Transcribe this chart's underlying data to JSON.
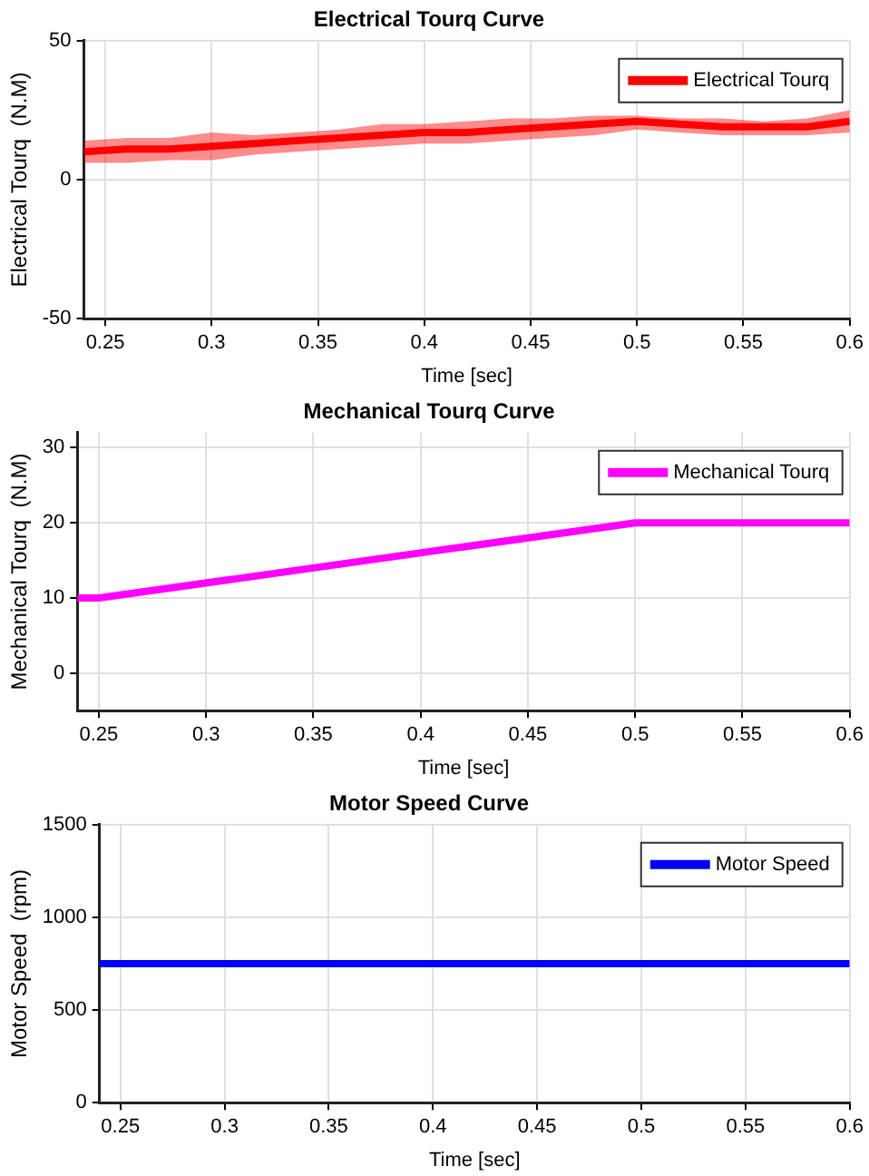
{
  "chart_data": [
    {
      "type": "line",
      "title": "Electrical Tourq Curve",
      "xlabel": "Time [sec]",
      "ylabel": "Electrical Tourq  (N.M)",
      "xlim": [
        0.24,
        0.6
      ],
      "xticks": [
        0.25,
        0.3,
        0.35,
        0.4,
        0.45,
        0.5,
        0.55,
        0.6
      ],
      "ylim": [
        -50,
        50
      ],
      "yticks": [
        -50,
        0,
        50
      ],
      "grid": true,
      "legend": "top right",
      "series": [
        {
          "name": "Electrical Tourq",
          "color": "#ff0000",
          "x": [
            0.24,
            0.26,
            0.28,
            0.3,
            0.32,
            0.34,
            0.36,
            0.38,
            0.4,
            0.42,
            0.44,
            0.46,
            0.48,
            0.5,
            0.52,
            0.54,
            0.56,
            0.58,
            0.6
          ],
          "values": [
            10,
            11,
            11,
            12,
            13,
            14,
            15,
            16,
            17,
            17,
            18,
            19,
            20,
            21,
            20,
            19,
            19,
            19,
            21
          ],
          "lower": [
            6,
            6,
            7,
            7,
            9,
            10,
            11,
            12,
            13,
            13,
            14,
            15,
            16,
            18,
            17,
            16,
            16,
            16,
            17
          ],
          "upper": [
            14,
            15,
            15,
            17,
            16,
            17,
            18,
            20,
            20,
            21,
            22,
            22,
            23,
            23,
            22,
            22,
            21,
            22,
            25
          ]
        }
      ]
    },
    {
      "type": "line",
      "title": "Mechanical Tourq Curve",
      "xlabel": "Time [sec]",
      "ylabel": "Mechanical Tourq  (N.M)",
      "xlim": [
        0.24,
        0.6
      ],
      "xticks": [
        0.25,
        0.3,
        0.35,
        0.4,
        0.45,
        0.5,
        0.55,
        0.6
      ],
      "ylim": [
        -5,
        32
      ],
      "yticks": [
        0,
        10,
        20,
        30
      ],
      "grid": true,
      "legend": "top right",
      "series": [
        {
          "name": "Mechanical Tourq",
          "color": "#ff00ff",
          "x": [
            0.24,
            0.25,
            0.5,
            0.6
          ],
          "values": [
            10,
            10,
            20,
            20
          ]
        }
      ]
    },
    {
      "type": "line",
      "title": "Motor Speed Curve",
      "xlabel": "Time [sec]",
      "ylabel": "Motor Speed  (rpm)",
      "xlim": [
        0.24,
        0.6
      ],
      "xticks": [
        0.25,
        0.3,
        0.35,
        0.4,
        0.45,
        0.5,
        0.55,
        0.6
      ],
      "ylim": [
        0,
        1500
      ],
      "yticks": [
        0,
        500,
        1000,
        1500
      ],
      "grid": true,
      "legend": "top right",
      "series": [
        {
          "name": "Motor Speed",
          "color": "#0000ff",
          "x": [
            0.24,
            0.6
          ],
          "values": [
            750,
            750
          ]
        }
      ]
    }
  ]
}
